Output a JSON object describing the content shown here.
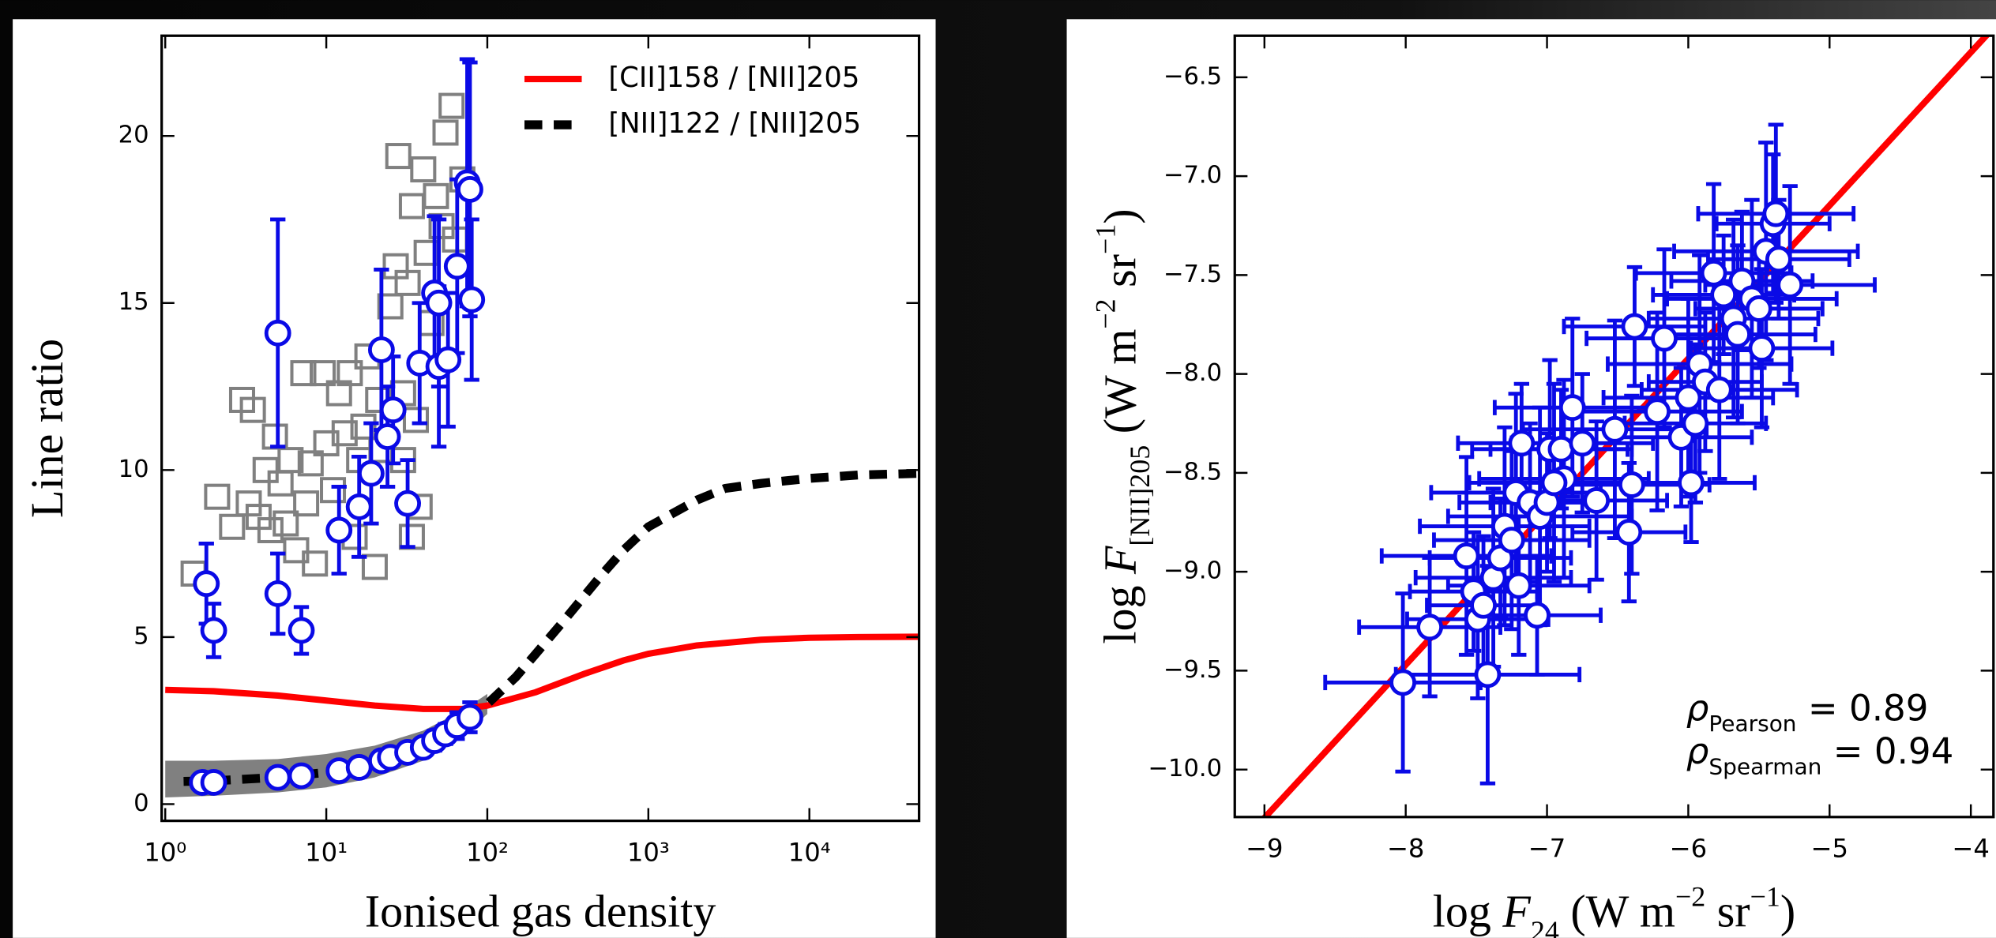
{
  "chart_data": [
    {
      "type": "scatter",
      "xlabel": "Ionised gas density",
      "ylabel": "Line ratio",
      "xlog": true,
      "xlim": [
        0.95,
        48000
      ],
      "ylim": [
        -0.5,
        23
      ],
      "xticks": [
        {
          "value": 1,
          "label": "10⁰"
        },
        {
          "value": 10,
          "label": "10¹"
        },
        {
          "value": 100,
          "label": "10²"
        },
        {
          "value": 1000,
          "label": "10³"
        },
        {
          "value": 10000,
          "label": "10⁴"
        }
      ],
      "yticks": [
        0,
        5,
        10,
        15,
        20
      ],
      "legend": "upper right",
      "band": {
        "color": "#808080",
        "x": [
          1,
          2,
          5,
          10,
          20,
          40,
          70,
          100
        ],
        "lower": [
          0.2,
          0.25,
          0.35,
          0.5,
          0.8,
          1.3,
          2.0,
          2.7
        ],
        "upper": [
          1.3,
          1.3,
          1.35,
          1.5,
          1.75,
          2.2,
          2.8,
          3.3
        ]
      },
      "series": [
        {
          "type": "scatter",
          "marker": "square",
          "color": "#808080",
          "x": [
            1.5,
            2.1,
            2.6,
            3.0,
            3.3,
            3.5,
            3.8,
            4.2,
            4.5,
            4.8,
            5.2,
            5.6,
            6.0,
            6.5,
            7.2,
            7.5,
            8.0,
            8.5,
            9.5,
            10,
            11,
            12,
            13,
            14,
            15,
            16,
            17,
            18,
            20,
            21,
            22,
            25,
            27,
            28,
            30,
            32,
            34,
            36,
            40,
            42,
            45,
            48,
            52,
            55,
            60,
            63,
            70,
            34,
            38,
            30
          ],
          "values": [
            6.9,
            9.2,
            8.3,
            12.1,
            9.0,
            11.8,
            8.6,
            10.0,
            8.2,
            11.0,
            9.6,
            8.4,
            10.3,
            7.6,
            12.9,
            9.0,
            10.2,
            7.2,
            12.9,
            10.8,
            9.4,
            12.3,
            11.1,
            12.9,
            8.0,
            10.3,
            11.3,
            13.4,
            7.1,
            12.1,
            10.6,
            14.9,
            16.1,
            19.4,
            12.3,
            15.6,
            17.9,
            11.5,
            19.0,
            16.5,
            14.4,
            18.2,
            17.3,
            20.1,
            20.9,
            16.9,
            18.7,
            8.0,
            8.9,
            10.3
          ]
        },
        {
          "type": "line",
          "name": "[CII]158 / [NII]205",
          "color": "#ff0000",
          "x": [
            1,
            2,
            5,
            10,
            20,
            40,
            70,
            100,
            200,
            400,
            700,
            1000,
            2000,
            5000,
            10000,
            20000,
            48000
          ],
          "values": [
            3.42,
            3.38,
            3.25,
            3.1,
            2.95,
            2.85,
            2.85,
            2.95,
            3.35,
            3.9,
            4.3,
            4.5,
            4.75,
            4.92,
            4.98,
            5.0,
            5.01
          ]
        },
        {
          "type": "line",
          "name": "[NII]122 / [NII]205",
          "color": "#000000",
          "dashed": true,
          "x": [
            1.3,
            2,
            5,
            10,
            20,
            40,
            70,
            100,
            150,
            200,
            300,
            500,
            700,
            1000,
            2000,
            3000,
            5000,
            10000,
            20000,
            48000
          ],
          "values": [
            0.68,
            0.7,
            0.8,
            0.95,
            1.25,
            1.8,
            2.5,
            3.0,
            3.8,
            4.5,
            5.5,
            6.8,
            7.6,
            8.3,
            9.1,
            9.45,
            9.6,
            9.75,
            9.85,
            9.9
          ]
        },
        {
          "type": "scatter",
          "marker": "circle",
          "color": "#0a0ae6",
          "x": [
            1.8,
            2.0,
            5,
            5,
            7,
            12,
            16,
            19,
            22,
            24,
            26,
            32,
            38,
            47,
            50,
            50,
            57,
            65,
            75,
            78,
            80,
            1.7,
            2.0,
            5,
            7,
            12,
            16,
            22,
            25,
            32,
            40,
            47,
            55,
            65,
            78
          ],
          "values": [
            6.6,
            5.2,
            14.1,
            6.3,
            5.2,
            8.2,
            8.9,
            9.9,
            13.6,
            11.0,
            11.8,
            9.0,
            13.2,
            15.3,
            15.0,
            13.1,
            13.3,
            16.1,
            18.6,
            18.4,
            15.1,
            0.65,
            0.65,
            0.8,
            0.85,
            1.0,
            1.1,
            1.3,
            1.4,
            1.55,
            1.7,
            1.9,
            2.1,
            2.35,
            2.6
          ],
          "errors": [
            1.2,
            0.8,
            3.4,
            1.2,
            0.7,
            1.3,
            1.5,
            1.5,
            2.4,
            1.5,
            1.6,
            1.3,
            1.8,
            2.3,
            2.5,
            2.4,
            2.0,
            2.6,
            3.7,
            3.8,
            2.4,
            0.1,
            0.1,
            0.1,
            0.1,
            0.15,
            0.15,
            0.2,
            0.2,
            0.2,
            0.25,
            0.3,
            0.3,
            0.4,
            0.45
          ]
        }
      ]
    },
    {
      "type": "scatter",
      "xlabel": [
        {
          "text": "log "
        },
        {
          "text": "F",
          "style": "italic"
        },
        {
          "text": "24",
          "pos": "sub"
        },
        {
          "text": " (W m"
        },
        {
          "text": "−2",
          "pos": "sup"
        },
        {
          "text": " sr"
        },
        {
          "text": "−1",
          "pos": "sup"
        },
        {
          "text": ")"
        }
      ],
      "ylabel": [
        {
          "text": "log "
        },
        {
          "text": "F",
          "style": "italic"
        },
        {
          "text": "[NII]205",
          "pos": "sub"
        },
        {
          "text": " (W m"
        },
        {
          "text": "−2",
          "pos": "sup"
        },
        {
          "text": " sr"
        },
        {
          "text": "−1",
          "pos": "sup"
        },
        {
          "text": ")"
        }
      ],
      "xlim": [
        -9.21,
        -3.84
      ],
      "ylim": [
        -10.24,
        -6.29
      ],
      "xticks": [
        {
          "value": -9,
          "label": "−9"
        },
        {
          "value": -8,
          "label": "−8"
        },
        {
          "value": -7,
          "label": "−7"
        },
        {
          "value": -6,
          "label": "−6"
        },
        {
          "value": -5,
          "label": "−5"
        },
        {
          "value": -4,
          "label": "−4"
        }
      ],
      "yticks": [
        {
          "value": -6.5,
          "label": "−6.5"
        },
        {
          "value": -7.0,
          "label": "−7.0"
        },
        {
          "value": -7.5,
          "label": "−7.5"
        },
        {
          "value": -8.0,
          "label": "−8.0"
        },
        {
          "value": -8.5,
          "label": "−8.5"
        },
        {
          "value": -9.0,
          "label": "−9.0"
        },
        {
          "value": -9.5,
          "label": "−9.5"
        },
        {
          "value": -10.0,
          "label": "−10.0"
        }
      ],
      "annotations": [
        [
          {
            "text": "ρ",
            "style": "italic"
          },
          {
            "text": "Pearson",
            "pos": "sub"
          },
          {
            "text": " = 0.89"
          }
        ],
        [
          {
            "text": "ρ",
            "style": "italic"
          },
          {
            "text": "Spearman",
            "pos": "sub"
          },
          {
            "text": " = 0.94"
          }
        ]
      ],
      "series": [
        {
          "type": "line",
          "color": "#ff0000",
          "x": [
            -9.02,
            -3.84
          ],
          "values": [
            -10.26,
            -6.25
          ]
        },
        {
          "type": "scatter",
          "marker": "circle",
          "color": "#0a0ae6",
          "x": [
            -8.02,
            -7.83,
            -7.57,
            -7.52,
            -7.49,
            -7.42,
            -7.45,
            -7.38,
            -7.33,
            -7.3,
            -7.25,
            -7.2,
            -7.22,
            -7.18,
            -7.12,
            -7.05,
            -7.0,
            -6.98,
            -6.9,
            -6.88,
            -6.82,
            -6.75,
            -6.95,
            -7.07,
            -6.65,
            -6.52,
            -6.42,
            -6.4,
            -6.38,
            -6.22,
            -6.17,
            -6.05,
            -6.0,
            -5.98,
            -5.95,
            -5.92,
            -5.88,
            -5.82,
            -5.75,
            -5.68,
            -5.65,
            -5.62,
            -5.55,
            -5.5,
            -5.48,
            -5.45,
            -5.4,
            -5.38,
            -5.36,
            -5.28,
            -5.78
          ],
          "values": [
            -9.56,
            -9.28,
            -8.92,
            -9.1,
            -9.24,
            -9.52,
            -9.17,
            -9.03,
            -8.93,
            -8.77,
            -8.84,
            -9.07,
            -8.6,
            -8.35,
            -8.65,
            -8.72,
            -8.65,
            -8.38,
            -8.38,
            -8.53,
            -8.17,
            -8.35,
            -8.55,
            -9.22,
            -8.64,
            -8.28,
            -8.8,
            -8.56,
            -7.76,
            -8.19,
            -7.82,
            -8.32,
            -8.12,
            -8.55,
            -8.25,
            -7.95,
            -8.04,
            -7.49,
            -7.6,
            -7.72,
            -7.8,
            -7.53,
            -7.62,
            -7.67,
            -7.87,
            -7.38,
            -7.24,
            -7.19,
            -7.42,
            -7.55,
            -8.08
          ],
          "xerrors": [
            0.55,
            0.5,
            0.6,
            0.45,
            0.5,
            0.65,
            0.4,
            0.55,
            0.5,
            0.6,
            0.55,
            0.5,
            0.6,
            0.45,
            0.5,
            0.65,
            0.4,
            0.55,
            0.5,
            0.6,
            0.55,
            0.5,
            0.6,
            0.45,
            0.5,
            0.65,
            0.4,
            0.55,
            0.5,
            0.6,
            0.55,
            0.5,
            0.6,
            0.45,
            0.5,
            0.65,
            0.4,
            0.55,
            0.5,
            0.6,
            0.55,
            0.5,
            0.6,
            0.45,
            0.5,
            0.65,
            0.4,
            0.55,
            0.5,
            0.6,
            0.55
          ],
          "errors": [
            0.45,
            0.35,
            0.5,
            0.3,
            0.4,
            0.55,
            0.35,
            0.45,
            0.3,
            0.5,
            0.45,
            0.35,
            0.5,
            0.3,
            0.4,
            0.55,
            0.35,
            0.45,
            0.3,
            0.5,
            0.45,
            0.35,
            0.5,
            0.3,
            0.4,
            0.55,
            0.35,
            0.45,
            0.3,
            0.5,
            0.45,
            0.35,
            0.5,
            0.3,
            0.4,
            0.55,
            0.35,
            0.45,
            0.3,
            0.5,
            0.45,
            0.35,
            0.5,
            0.3,
            0.4,
            0.55,
            0.35,
            0.45,
            0.3,
            0.5,
            0.45
          ]
        }
      ]
    }
  ]
}
